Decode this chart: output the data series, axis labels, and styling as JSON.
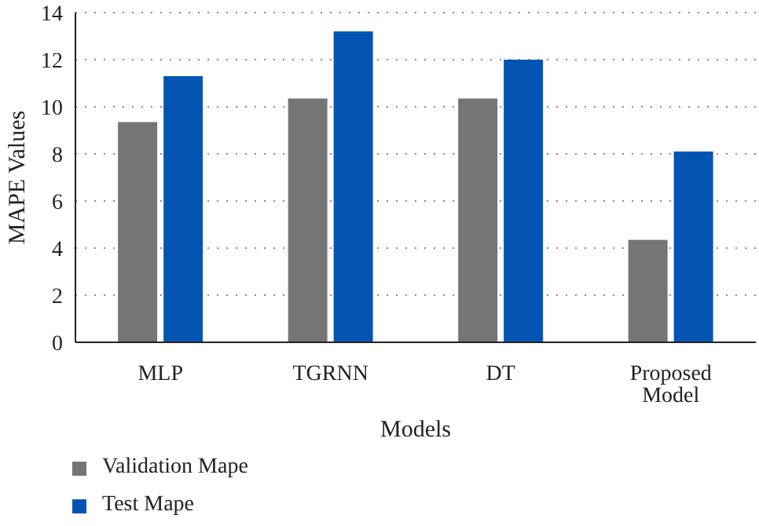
{
  "chart_data": {
    "type": "bar",
    "xlabel": "Models",
    "ylabel": "MAPE Values",
    "categories": [
      "MLP",
      "TGRNN",
      "DT",
      "Proposed Model"
    ],
    "series": [
      {
        "name": "Validation Mape",
        "color": "#757578",
        "values": [
          9.35,
          10.35,
          10.35,
          4.35
        ]
      },
      {
        "name": "Test Mape",
        "color": "#0455b3",
        "values": [
          11.3,
          13.2,
          12.0,
          8.1
        ]
      }
    ],
    "ylim": [
      0,
      14
    ],
    "yticks": [
      0,
      2,
      4,
      6,
      8,
      10,
      12,
      14
    ],
    "grid": "y",
    "legend": "bottom"
  }
}
